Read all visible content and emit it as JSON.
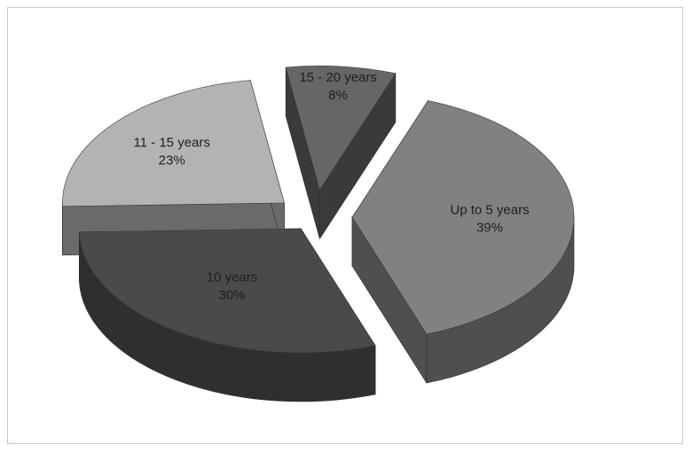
{
  "chart_data": {
    "type": "pie",
    "style": "3d-exploded",
    "title": "",
    "slices": [
      {
        "label": "Up to 5 years",
        "value": 39,
        "pct_label": "39%",
        "color": "#818181",
        "side_color": "#4f4f4f"
      },
      {
        "label": "10 years",
        "value": 30,
        "pct_label": "30%",
        "color": "#4a4a4a",
        "side_color": "#2f2f2f"
      },
      {
        "label": "11 - 15 years",
        "value": 23,
        "pct_label": "23%",
        "color": "#b3b3b3",
        "side_color": "#6a6a6a"
      },
      {
        "label": "15 - 20 years",
        "value": 8,
        "pct_label": "8%",
        "color": "#666666",
        "side_color": "#3a3a3a"
      }
    ]
  }
}
